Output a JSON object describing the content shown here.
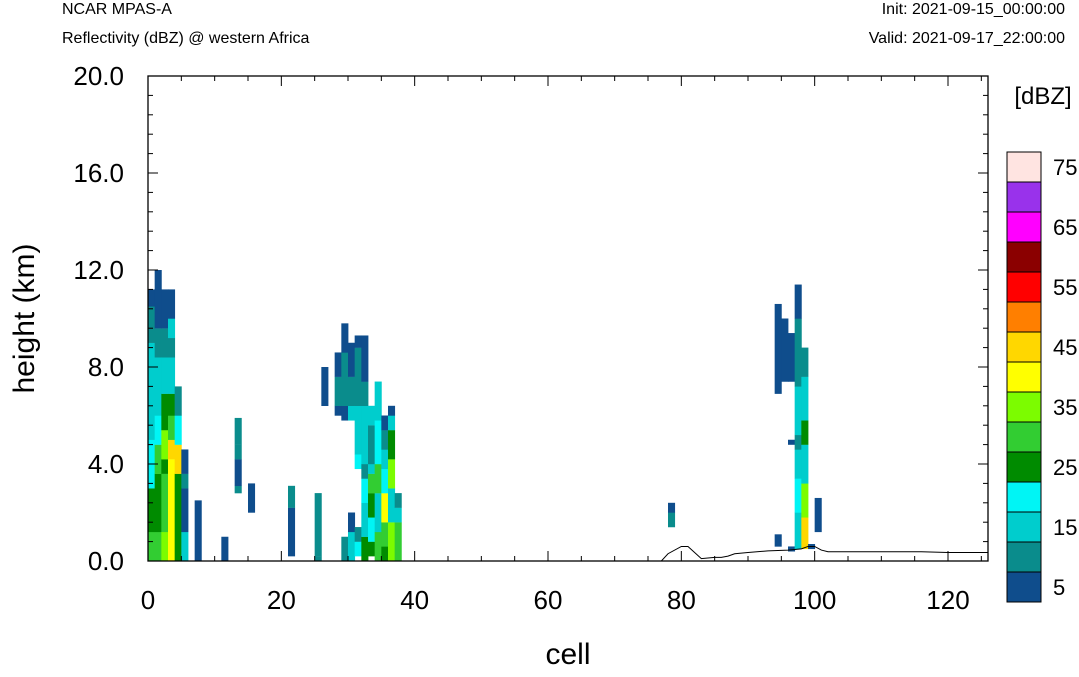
{
  "header": {
    "left_title": "NCAR MPAS-A",
    "left_subtitle": "Reflectivity (dBZ) @ western Africa",
    "right_init": "Init: 2021-09-15_00:00:00",
    "right_valid": "Valid: 2021-09-17_22:00:00"
  },
  "chart_data": {
    "type": "heatmap",
    "title": "Reflectivity (dBZ) @ western Africa",
    "xlabel": "cell",
    "ylabel": "height (km)",
    "xlim": [
      0,
      126
    ],
    "ylim": [
      0,
      20
    ],
    "x_ticks": [
      0,
      20,
      40,
      60,
      80,
      100,
      120
    ],
    "x_tick_labels": [
      "0",
      "20",
      "40",
      "60",
      "80",
      "100",
      "120"
    ],
    "y_ticks": [
      0,
      4,
      8,
      12,
      16,
      20
    ],
    "y_tick_labels": [
      "0.0",
      "4.0",
      "8.0",
      "12.0",
      "16.0",
      "20.0"
    ],
    "colorbar": {
      "unit_label": "[dBZ]",
      "levels": [
        5,
        10,
        15,
        20,
        25,
        30,
        35,
        40,
        45,
        50,
        55,
        60,
        65,
        70,
        75
      ],
      "labels": [
        "5",
        "15",
        "25",
        "35",
        "45",
        "55",
        "65",
        "75"
      ],
      "colors": [
        "#0f4d8c",
        "#0a8c8c",
        "#00cdcd",
        "#00f5f5",
        "#008b00",
        "#32cd32",
        "#7cfc00",
        "#ffff00",
        "#ffd700",
        "#ff7f00",
        "#ff0000",
        "#8b0000",
        "#ff00ff",
        "#9932eb",
        "#ffe4e1"
      ]
    },
    "cell_height_km": 0.3,
    "columns": [
      {
        "x": 1,
        "segments": [
          [
            0,
            1.2,
            30
          ],
          [
            1.2,
            3.0,
            25
          ],
          [
            3.0,
            5.0,
            20
          ],
          [
            5.0,
            9.0,
            15
          ],
          [
            9.0,
            10.5,
            10
          ],
          [
            10.5,
            11.2,
            5
          ]
        ]
      },
      {
        "x": 2,
        "segments": [
          [
            0,
            1.2,
            30
          ],
          [
            1.2,
            3.6,
            25
          ],
          [
            3.6,
            4.8,
            30
          ],
          [
            4.8,
            6.0,
            20
          ],
          [
            6.0,
            8.4,
            15
          ],
          [
            8.4,
            9.6,
            10
          ],
          [
            9.6,
            11.2,
            5
          ],
          [
            11.2,
            12.0,
            5
          ]
        ]
      },
      {
        "x": 3,
        "segments": [
          [
            0,
            1.2,
            35
          ],
          [
            1.2,
            3.6,
            30
          ],
          [
            3.6,
            4.2,
            25
          ],
          [
            4.2,
            5.4,
            35
          ],
          [
            5.4,
            6.9,
            25
          ],
          [
            6.9,
            8.4,
            15
          ],
          [
            8.4,
            9.6,
            10
          ],
          [
            9.6,
            11.2,
            5
          ]
        ]
      },
      {
        "x": 4,
        "segments": [
          [
            0,
            4.2,
            40
          ],
          [
            4.2,
            5.0,
            45
          ],
          [
            5.0,
            6.0,
            30
          ],
          [
            6.0,
            6.9,
            25
          ],
          [
            6.9,
            8.4,
            15
          ],
          [
            8.4,
            9.2,
            10
          ],
          [
            9.2,
            10.0,
            15
          ],
          [
            10.0,
            11.2,
            5
          ]
        ]
      },
      {
        "x": 5,
        "segments": [
          [
            0,
            3.6,
            25
          ],
          [
            3.6,
            4.8,
            45
          ],
          [
            4.8,
            6.0,
            20
          ],
          [
            6.0,
            7.2,
            10
          ]
        ]
      },
      {
        "x": 6,
        "segments": [
          [
            0,
            1.2,
            15
          ],
          [
            1.2,
            3.0,
            5
          ],
          [
            3.0,
            3.6,
            10
          ],
          [
            3.6,
            4.6,
            5
          ]
        ]
      },
      {
        "x": 8,
        "segments": [
          [
            0,
            2.5,
            5
          ]
        ]
      },
      {
        "x": 12,
        "segments": [
          [
            0,
            1.0,
            5
          ]
        ]
      },
      {
        "x": 14,
        "segments": [
          [
            2.8,
            3.1,
            10
          ],
          [
            3.1,
            4.2,
            5
          ],
          [
            4.2,
            4.8,
            10
          ],
          [
            4.8,
            5.9,
            10
          ]
        ]
      },
      {
        "x": 16,
        "segments": [
          [
            2.0,
            3.2,
            5
          ]
        ]
      },
      {
        "x": 22,
        "segments": [
          [
            0.2,
            2.2,
            5
          ],
          [
            2.2,
            3.1,
            10
          ]
        ]
      },
      {
        "x": 26,
        "segments": [
          [
            0,
            0.2,
            10
          ],
          [
            0.2,
            2.8,
            10
          ]
        ]
      },
      {
        "x": 27,
        "segments": [
          [
            6.4,
            8.0,
            5
          ]
        ]
      },
      {
        "x": 29,
        "segments": [
          [
            6.0,
            6.4,
            5
          ],
          [
            6.4,
            7.6,
            10
          ],
          [
            7.6,
            8.6,
            5
          ]
        ]
      },
      {
        "x": 30,
        "segments": [
          [
            0,
            1.0,
            10
          ],
          [
            5.8,
            6.4,
            5
          ],
          [
            6.4,
            8.6,
            10
          ],
          [
            8.6,
            9.8,
            5
          ]
        ]
      },
      {
        "x": 31,
        "segments": [
          [
            0,
            1.2,
            15
          ],
          [
            1.2,
            2.0,
            5
          ],
          [
            5.8,
            6.4,
            15
          ],
          [
            6.4,
            7.6,
            10
          ],
          [
            7.6,
            9.0,
            5
          ]
        ]
      },
      {
        "x": 32,
        "segments": [
          [
            0.2,
            0.8,
            20
          ],
          [
            0.8,
            1.4,
            10
          ],
          [
            3.8,
            4.4,
            20
          ],
          [
            4.4,
            6.4,
            15
          ],
          [
            6.4,
            8.8,
            10
          ],
          [
            8.8,
            9.3,
            5
          ]
        ]
      },
      {
        "x": 33,
        "segments": [
          [
            0,
            1.0,
            25
          ],
          [
            1.0,
            2.4,
            15
          ],
          [
            2.4,
            3.4,
            20
          ],
          [
            3.4,
            4.0,
            10
          ],
          [
            4.0,
            6.4,
            15
          ],
          [
            6.4,
            7.4,
            10
          ],
          [
            7.4,
            9.3,
            5
          ]
        ]
      },
      {
        "x": 34,
        "segments": [
          [
            0.2,
            0.8,
            25
          ],
          [
            0.8,
            1.8,
            20
          ],
          [
            1.8,
            2.8,
            25
          ],
          [
            2.8,
            3.6,
            30
          ],
          [
            3.6,
            4.0,
            15
          ],
          [
            4.0,
            5.6,
            10
          ],
          [
            5.6,
            6.4,
            15
          ]
        ]
      },
      {
        "x": 35,
        "segments": [
          [
            0,
            1.2,
            30
          ],
          [
            1.2,
            2.8,
            15
          ],
          [
            2.8,
            4.0,
            30
          ],
          [
            4.0,
            5.8,
            20
          ],
          [
            5.8,
            7.4,
            15
          ]
        ]
      },
      {
        "x": 36,
        "segments": [
          [
            0,
            0.6,
            25
          ],
          [
            0.6,
            1.6,
            30
          ],
          [
            1.6,
            2.8,
            40
          ],
          [
            2.8,
            3.8,
            20
          ],
          [
            3.8,
            4.6,
            15
          ],
          [
            4.6,
            5.4,
            10
          ],
          [
            5.4,
            6.0,
            5
          ]
        ]
      },
      {
        "x": 37,
        "segments": [
          [
            0,
            1.6,
            35
          ],
          [
            1.6,
            3.0,
            15
          ],
          [
            3.0,
            4.2,
            35
          ],
          [
            4.2,
            5.4,
            25
          ],
          [
            5.4,
            6.0,
            15
          ],
          [
            6.0,
            6.4,
            5
          ]
        ]
      },
      {
        "x": 38,
        "segments": [
          [
            0,
            1.6,
            30
          ],
          [
            1.6,
            2.2,
            15
          ],
          [
            2.2,
            2.8,
            10
          ]
        ]
      },
      {
        "x": 79,
        "segments": [
          [
            1.4,
            2.0,
            10
          ],
          [
            2.0,
            2.4,
            5
          ]
        ]
      },
      {
        "x": 95,
        "segments": [
          [
            0.6,
            1.1,
            5
          ],
          [
            6.9,
            10.6,
            5
          ]
        ]
      },
      {
        "x": 96,
        "segments": [
          [
            7.4,
            10.0,
            5
          ]
        ]
      },
      {
        "x": 97,
        "segments": [
          [
            0.4,
            0.6,
            5
          ],
          [
            4.8,
            5.0,
            5
          ],
          [
            7.4,
            9.4,
            5
          ]
        ]
      },
      {
        "x": 98,
        "segments": [
          [
            0.5,
            2.0,
            15
          ],
          [
            2.0,
            3.4,
            20
          ],
          [
            3.4,
            4.6,
            15
          ],
          [
            4.6,
            5.2,
            10
          ],
          [
            5.2,
            7.2,
            15
          ],
          [
            7.2,
            8.4,
            10
          ],
          [
            8.4,
            10.0,
            10
          ],
          [
            10.0,
            11.4,
            5
          ]
        ]
      },
      {
        "x": 99,
        "segments": [
          [
            0.5,
            1.8,
            45
          ],
          [
            1.8,
            3.2,
            35
          ],
          [
            3.2,
            4.8,
            15
          ],
          [
            4.8,
            5.8,
            25
          ],
          [
            5.8,
            6.4,
            15
          ],
          [
            6.4,
            7.6,
            15
          ],
          [
            7.6,
            8.8,
            10
          ]
        ]
      },
      {
        "x": 100,
        "segments": [
          [
            0.5,
            0.7,
            5
          ]
        ]
      },
      {
        "x": 101,
        "segments": [
          [
            1.2,
            2.6,
            5
          ]
        ]
      }
    ],
    "terrain": {
      "x": [
        0,
        77,
        78,
        80,
        81,
        83,
        85,
        86,
        87,
        88,
        90,
        93,
        96,
        98,
        99,
        100,
        101,
        102,
        104,
        110,
        116,
        120,
        126
      ],
      "y": [
        0.0,
        0.0,
        0.3,
        0.6,
        0.6,
        0.1,
        0.15,
        0.15,
        0.2,
        0.3,
        0.35,
        0.42,
        0.45,
        0.5,
        0.6,
        0.6,
        0.45,
        0.38,
        0.38,
        0.38,
        0.38,
        0.35,
        0.35
      ]
    }
  }
}
